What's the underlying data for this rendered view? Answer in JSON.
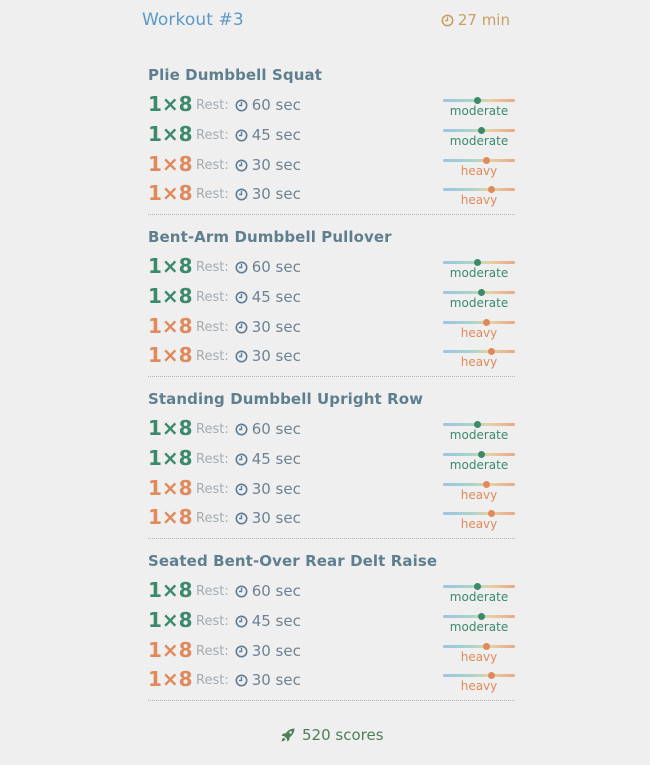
{
  "header": {
    "title": "Workout #3",
    "duration": "27 min"
  },
  "colors": {
    "moderate": "#3b8a6b",
    "heavy": "#e08a5c",
    "title": "#5b9ac6",
    "duration": "#c8a061"
  },
  "exercises": [
    {
      "name": "Plie Dumbbell Squat",
      "sets": [
        {
          "reps": "1×8",
          "rest_label": "Rest:",
          "rest": "60 sec",
          "intensity": "moderate",
          "level": 0.47
        },
        {
          "reps": "1×8",
          "rest_label": "Rest:",
          "rest": "45 sec",
          "intensity": "moderate",
          "level": 0.53
        },
        {
          "reps": "1×8",
          "rest_label": "Rest:",
          "rest": "30 sec",
          "intensity": "heavy",
          "level": 0.6
        },
        {
          "reps": "1×8",
          "rest_label": "Rest:",
          "rest": "30 sec",
          "intensity": "heavy",
          "level": 0.67
        }
      ]
    },
    {
      "name": "Bent-Arm Dumbbell Pullover",
      "sets": [
        {
          "reps": "1×8",
          "rest_label": "Rest:",
          "rest": "60 sec",
          "intensity": "moderate",
          "level": 0.47
        },
        {
          "reps": "1×8",
          "rest_label": "Rest:",
          "rest": "45 sec",
          "intensity": "moderate",
          "level": 0.53
        },
        {
          "reps": "1×8",
          "rest_label": "Rest:",
          "rest": "30 sec",
          "intensity": "heavy",
          "level": 0.6
        },
        {
          "reps": "1×8",
          "rest_label": "Rest:",
          "rest": "30 sec",
          "intensity": "heavy",
          "level": 0.67
        }
      ]
    },
    {
      "name": "Standing Dumbbell Upright Row",
      "sets": [
        {
          "reps": "1×8",
          "rest_label": "Rest:",
          "rest": "60 sec",
          "intensity": "moderate",
          "level": 0.47
        },
        {
          "reps": "1×8",
          "rest_label": "Rest:",
          "rest": "45 sec",
          "intensity": "moderate",
          "level": 0.53
        },
        {
          "reps": "1×8",
          "rest_label": "Rest:",
          "rest": "30 sec",
          "intensity": "heavy",
          "level": 0.6
        },
        {
          "reps": "1×8",
          "rest_label": "Rest:",
          "rest": "30 sec",
          "intensity": "heavy",
          "level": 0.67
        }
      ]
    },
    {
      "name": "Seated Bent-Over Rear Delt Raise",
      "sets": [
        {
          "reps": "1×8",
          "rest_label": "Rest:",
          "rest": "60 sec",
          "intensity": "moderate",
          "level": 0.47
        },
        {
          "reps": "1×8",
          "rest_label": "Rest:",
          "rest": "45 sec",
          "intensity": "moderate",
          "level": 0.53
        },
        {
          "reps": "1×8",
          "rest_label": "Rest:",
          "rest": "30 sec",
          "intensity": "heavy",
          "level": 0.6
        },
        {
          "reps": "1×8",
          "rest_label": "Rest:",
          "rest": "30 sec",
          "intensity": "heavy",
          "level": 0.67
        }
      ]
    }
  ],
  "footer": {
    "icon": "rocket-icon",
    "scores": "520 scores"
  }
}
